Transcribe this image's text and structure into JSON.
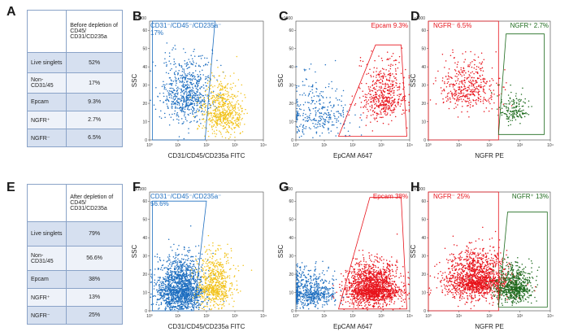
{
  "figure": {
    "rows": [
      {
        "row_letter": "A",
        "table": {
          "header": "Before depletion of CD45/ CD31/CD235a",
          "rows": [
            {
              "label": "Live singlets",
              "value": "52%"
            },
            {
              "label": "Non- CD31/45",
              "value": "17%"
            },
            {
              "label": "Epcam",
              "value": "9.3%"
            },
            {
              "label": "NGFR⁺",
              "value": "2.7%"
            },
            {
              "label": "NGFR⁻",
              "value": "6.5%"
            }
          ]
        }
      },
      {
        "row_letter": "E",
        "table": {
          "header": "After depletion of CD45/ CD31/CD235a",
          "rows": [
            {
              "label": "Live singlets",
              "value": "79%"
            },
            {
              "label": "Non- CD31/45",
              "value": "56.6%"
            },
            {
              "label": "Epcam",
              "value": "38%"
            },
            {
              "label": "NGFR⁺",
              "value": "13%"
            },
            {
              "label": "NGFR⁻",
              "value": "25%"
            }
          ]
        }
      }
    ],
    "colors": {
      "blue": "#1f6fc0",
      "yellow": "#f2c21a",
      "red": "#e8141c",
      "green": "#1e6b1e"
    }
  },
  "chart_data": [
    {
      "panel": "B",
      "type": "scatter",
      "xlabel": "CD31/CD45/CD235a FITC",
      "ylabel": "SSC",
      "y_multiplier": "x1000",
      "x_scale": "log",
      "xlim": [
        1,
        10000
      ],
      "ylim": [
        0,
        65
      ],
      "x_ticks": [
        "10⁰",
        "10¹",
        "10²",
        "10³",
        "10⁴"
      ],
      "y_ticks": [
        0,
        10,
        20,
        30,
        40,
        50,
        60
      ],
      "gates": [
        {
          "name": "CD31⁻/CD45⁻/CD235a⁻",
          "percent": "17%",
          "color": "#1f6fc0"
        }
      ],
      "populations": [
        {
          "color": "#1f6fc0",
          "center_log_x": 1.3,
          "center_y": 25,
          "spread_x": 0.45,
          "spread_y": 11,
          "n": 700
        },
        {
          "color": "#f2c21a",
          "center_log_x": 2.6,
          "center_y": 15,
          "spread_x": 0.35,
          "spread_y": 9,
          "n": 600
        }
      ]
    },
    {
      "panel": "C",
      "type": "scatter",
      "xlabel": "EpCAM A647",
      "ylabel": "SSC",
      "y_multiplier": "x1000",
      "x_scale": "log",
      "xlim": [
        1,
        10000
      ],
      "ylim": [
        0,
        65
      ],
      "x_ticks": [
        "10⁰",
        "10¹",
        "10²",
        "10³",
        "10⁴"
      ],
      "y_ticks": [
        0,
        10,
        20,
        30,
        40,
        50,
        60
      ],
      "gates": [
        {
          "name": "Epcam",
          "percent": "9.3%",
          "color": "#e8141c"
        }
      ],
      "populations": [
        {
          "color": "#1f6fc0",
          "center_log_x": 0.8,
          "center_y": 15,
          "spread_x": 0.6,
          "spread_y": 10,
          "n": 320
        },
        {
          "color": "#e8141c",
          "center_log_x": 3.1,
          "center_y": 24,
          "spread_x": 0.4,
          "spread_y": 10,
          "n": 500
        }
      ]
    },
    {
      "panel": "D",
      "type": "scatter",
      "xlabel": "NGFR PE",
      "ylabel": "SSC",
      "y_multiplier": "x1000",
      "x_scale": "log",
      "xlim": [
        1,
        10000
      ],
      "ylim": [
        0,
        65
      ],
      "x_ticks": [
        "10⁰",
        "10¹",
        "10²",
        "10³",
        "10⁴"
      ],
      "y_ticks": [
        0,
        10,
        20,
        30,
        40,
        50,
        60
      ],
      "gates": [
        {
          "name": "NGFR⁻",
          "percent": "6.5%",
          "color": "#e8141c"
        },
        {
          "name": "NGFR⁺",
          "percent": "2.7%",
          "color": "#1e6b1e"
        }
      ],
      "populations": [
        {
          "color": "#e8141c",
          "center_log_x": 1.3,
          "center_y": 28,
          "spread_x": 0.45,
          "spread_y": 9,
          "n": 420
        },
        {
          "color": "#1e6b1e",
          "center_log_x": 2.8,
          "center_y": 16,
          "spread_x": 0.25,
          "spread_y": 5,
          "n": 160
        }
      ]
    },
    {
      "panel": "F",
      "type": "scatter",
      "xlabel": "CD31/CD45/CD235a FITC",
      "ylabel": "SSC",
      "y_multiplier": "x1000",
      "x_scale": "log",
      "xlim": [
        1,
        10000
      ],
      "ylim": [
        0,
        65
      ],
      "x_ticks": [
        "10⁰",
        "10¹",
        "10²",
        "10³",
        "10⁴"
      ],
      "y_ticks": [
        0,
        10,
        20,
        30,
        40,
        50,
        60
      ],
      "gates": [
        {
          "name": "CD31⁻/CD45⁻/CD235a⁻",
          "percent": "56.6%",
          "color": "#1f6fc0"
        }
      ],
      "populations": [
        {
          "color": "#1f6fc0",
          "center_log_x": 1.1,
          "center_y": 12,
          "spread_x": 0.4,
          "spread_y": 9,
          "n": 1600
        },
        {
          "color": "#f2c21a",
          "center_log_x": 2.3,
          "center_y": 14,
          "spread_x": 0.3,
          "spread_y": 9,
          "n": 650
        }
      ]
    },
    {
      "panel": "G",
      "type": "scatter",
      "xlabel": "EpCAM A647",
      "ylabel": "SSC",
      "y_multiplier": "x1000",
      "x_scale": "log",
      "xlim": [
        1,
        10000
      ],
      "ylim": [
        0,
        65
      ],
      "x_ticks": [
        "10⁰",
        "10¹",
        "10²",
        "10³",
        "10⁴"
      ],
      "y_ticks": [
        0,
        10,
        20,
        30,
        40,
        50,
        60
      ],
      "gates": [
        {
          "name": "Epcam",
          "percent": "38%",
          "color": "#e8141c"
        }
      ],
      "populations": [
        {
          "color": "#1f6fc0",
          "center_log_x": 0.5,
          "center_y": 10,
          "spread_x": 0.45,
          "spread_y": 6,
          "n": 650
        },
        {
          "color": "#e8141c",
          "center_log_x": 2.7,
          "center_y": 12,
          "spread_x": 0.45,
          "spread_y": 7,
          "n": 1700
        }
      ]
    },
    {
      "panel": "H",
      "type": "scatter",
      "xlabel": "NGFR PE",
      "ylabel": "SSC",
      "y_multiplier": "x1000",
      "x_scale": "log",
      "xlim": [
        1,
        10000
      ],
      "ylim": [
        0,
        65
      ],
      "x_ticks": [
        "10⁰",
        "10¹",
        "10²",
        "10³",
        "10⁴"
      ],
      "y_ticks": [
        0,
        10,
        20,
        30,
        40,
        50,
        60
      ],
      "gates": [
        {
          "name": "NGFR⁻",
          "percent": "25%",
          "color": "#e8141c"
        },
        {
          "name": "NGFR⁺",
          "percent": "13%",
          "color": "#1e6b1e"
        }
      ],
      "populations": [
        {
          "color": "#e8141c",
          "center_log_x": 1.6,
          "center_y": 17,
          "spread_x": 0.5,
          "spread_y": 8,
          "n": 1500
        },
        {
          "color": "#1e6b1e",
          "center_log_x": 2.8,
          "center_y": 13,
          "spread_x": 0.3,
          "spread_y": 6,
          "n": 700
        }
      ]
    }
  ]
}
